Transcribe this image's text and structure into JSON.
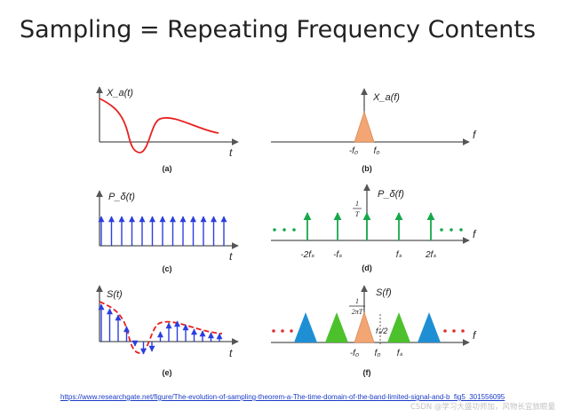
{
  "title": "Sampling = Repeating Frequency Contents",
  "source_link": "https://www.researchgate.net/figure/The-evolution-of-sampling-theorem-a-The-time-domain-of-the-band-limited-signal-and-b_fig5_301556095",
  "watermark": "CSDN @学习大盛功师加，风物长宜放眼量",
  "colors": {
    "signal": "#e82020",
    "impulse": "#2c3ee0",
    "frequency": "#16a84a",
    "base_spectrum": "#f4a574",
    "replica_blue": "#1f8fd4",
    "replica_green": "#4cc12c",
    "dots_red": "#e03030"
  },
  "panels": {
    "a": {
      "caption": "(a)",
      "ylabel": "X_a(t)",
      "xlabel": "t"
    },
    "b": {
      "caption": "(b)",
      "ylabel": "X_a(f)",
      "xlabel": "f",
      "ticks": [
        "-f₀",
        "f₀"
      ]
    },
    "c": {
      "caption": "(c)",
      "ylabel": "P_δ(t)",
      "xlabel": "t"
    },
    "d": {
      "caption": "(d)",
      "ylabel": "P_δ(f)",
      "xlabel": "f",
      "amp_num": "1",
      "amp_den": "T",
      "ticks": [
        "-2fₛ",
        "-fₛ",
        "fₛ",
        "2fₛ"
      ]
    },
    "e": {
      "caption": "(e)",
      "ylabel": "S(t)",
      "xlabel": "t"
    },
    "f": {
      "caption": "(f)",
      "ylabel": "S(f)",
      "xlabel": "f",
      "amp_num": "1",
      "amp_den": "2πT",
      "half_label": "fₛ/2",
      "ticks": [
        "-f₀",
        "f₀",
        "fₛ"
      ]
    }
  }
}
